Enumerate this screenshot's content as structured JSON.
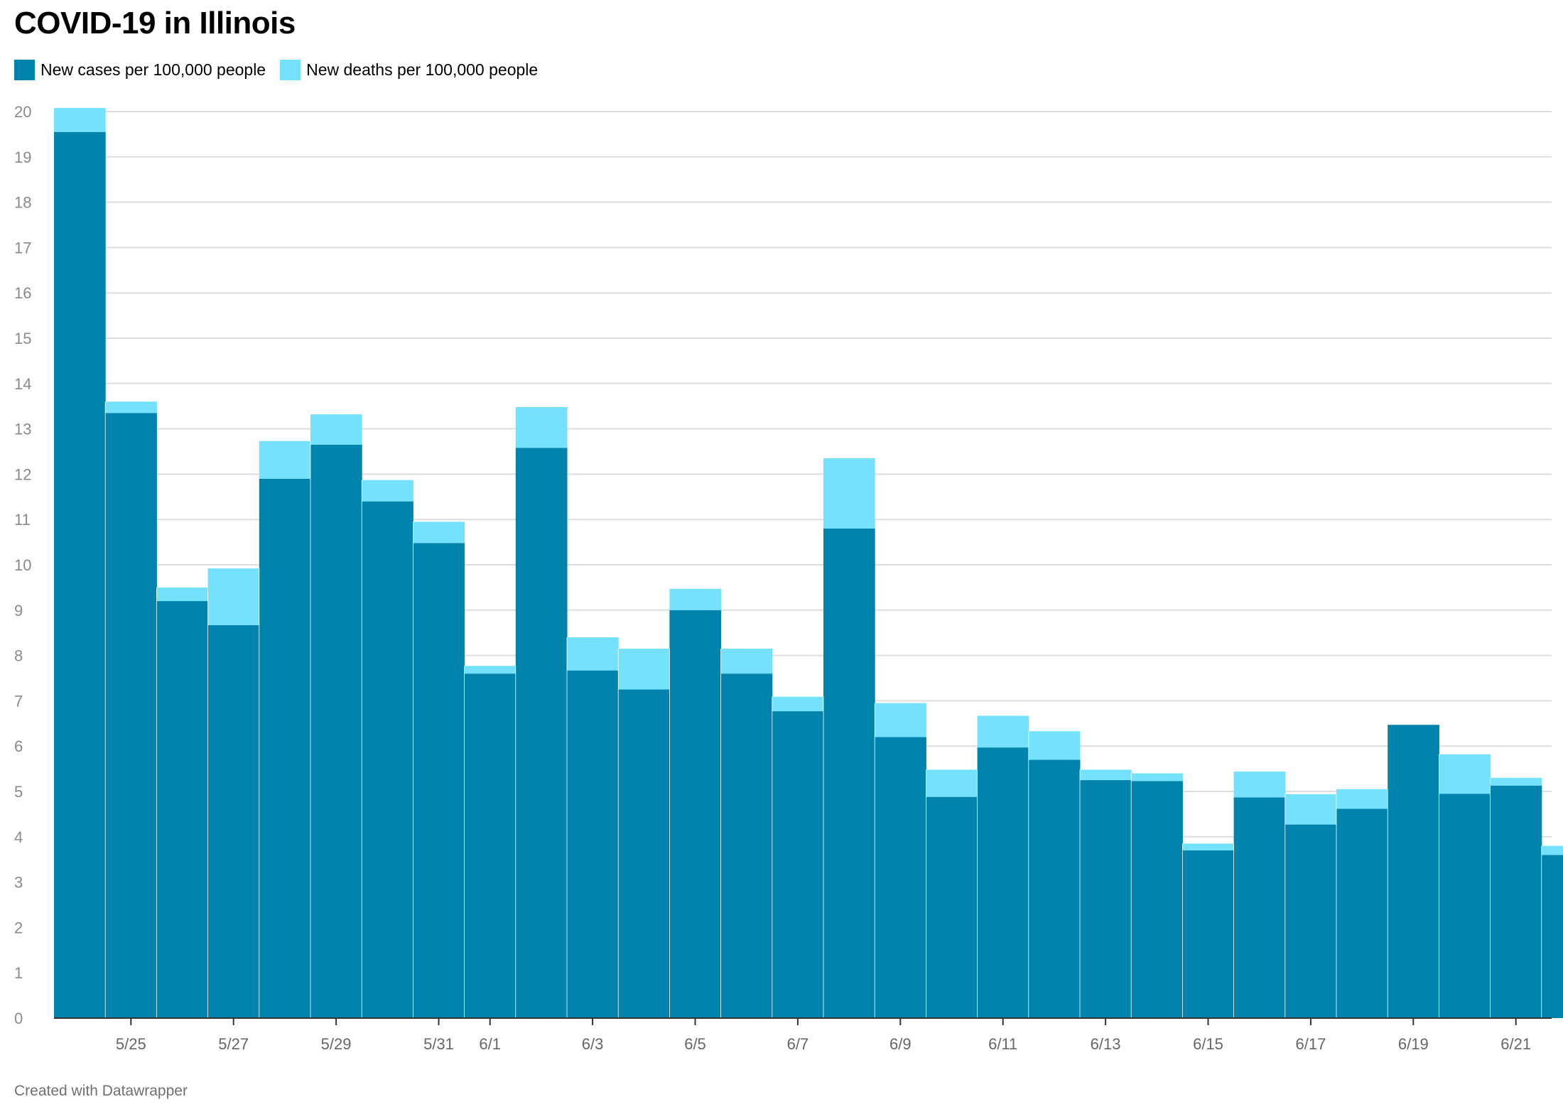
{
  "title": "COVID-19 in Illinois",
  "footer": "Created with Datawrapper",
  "colors": {
    "cases": "#0083ad",
    "deaths": "#75e2fd",
    "grid": "#dddddd",
    "axis_text": "#8a8a8a"
  },
  "chart_data": {
    "type": "bar",
    "stacked": true,
    "title": "COVID-19 in Illinois",
    "xlabel": "",
    "ylabel": "",
    "ylim": [
      0,
      20
    ],
    "yticks": [
      0,
      1,
      2,
      3,
      4,
      5,
      6,
      7,
      8,
      9,
      10,
      11,
      12,
      13,
      14,
      15,
      16,
      17,
      18,
      19,
      20
    ],
    "grid": true,
    "legend_position": "top-left",
    "categories": [
      "5/24",
      "5/25",
      "5/26",
      "5/27",
      "5/28",
      "5/29",
      "5/30",
      "5/31",
      "6/1",
      "6/2",
      "6/3",
      "6/4",
      "6/5",
      "6/6",
      "6/7",
      "6/8",
      "6/9",
      "6/10",
      "6/11",
      "6/12",
      "6/13",
      "6/14",
      "6/15",
      "6/16",
      "6/17",
      "6/18",
      "6/19",
      "6/20",
      "6/21",
      "6/22"
    ],
    "x_tick_labels": [
      "5/25",
      "5/27",
      "5/29",
      "5/31",
      "6/1",
      "6/3",
      "6/5",
      "6/7",
      "6/9",
      "6/11",
      "6/13",
      "6/15",
      "6/17",
      "6/19",
      "6/21"
    ],
    "series": [
      {
        "name": "New cases per 100,000 people",
        "values": [
          19.55,
          13.35,
          9.2,
          8.67,
          11.9,
          12.65,
          11.4,
          10.48,
          7.6,
          12.58,
          7.67,
          7.25,
          9.0,
          7.6,
          6.77,
          10.8,
          6.2,
          4.88,
          5.97,
          5.7,
          5.25,
          5.23,
          3.7,
          4.87,
          4.27,
          4.62,
          6.47,
          4.95,
          5.13,
          3.6
        ]
      },
      {
        "name": "New deaths per 100,000 people",
        "values": [
          0.53,
          0.25,
          0.3,
          1.25,
          0.83,
          0.67,
          0.47,
          0.47,
          0.17,
          0.9,
          0.73,
          0.9,
          0.47,
          0.55,
          0.32,
          1.55,
          0.75,
          0.6,
          0.7,
          0.63,
          0.23,
          0.17,
          0.15,
          0.57,
          0.67,
          0.43,
          0.0,
          0.87,
          0.17,
          0.2
        ]
      }
    ]
  }
}
